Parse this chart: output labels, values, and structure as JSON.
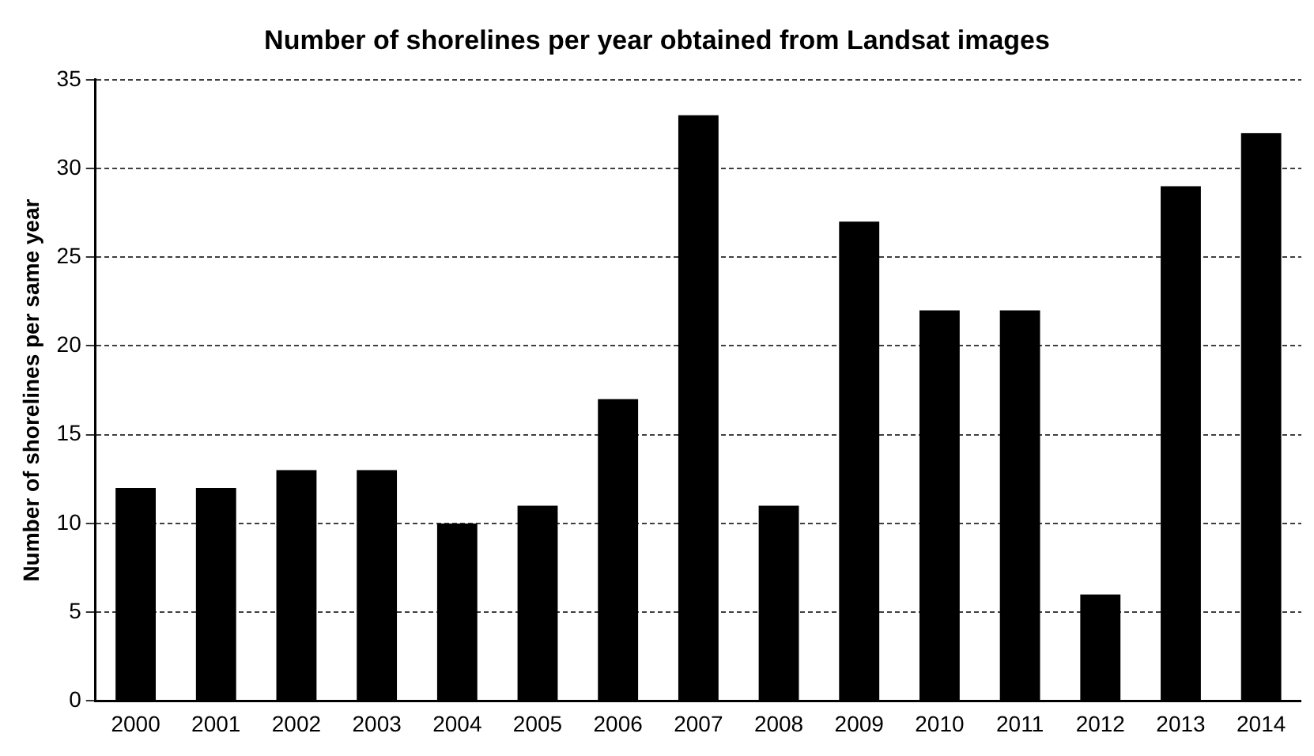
{
  "chart_data": {
    "type": "bar",
    "title": "Number of shorelines per year obtained from Landsat images",
    "ylabel": "Number of shorelines per same year",
    "categories": [
      "2000",
      "2001",
      "2002",
      "2003",
      "2004",
      "2005",
      "2006",
      "2007",
      "2008",
      "2009",
      "2010",
      "2011",
      "2012",
      "2013",
      "2014"
    ],
    "values": [
      12,
      12,
      13,
      13,
      10,
      11,
      17,
      33,
      11,
      27,
      22,
      22,
      6,
      29,
      32
    ],
    "color": "#000000",
    "ylim": [
      0,
      35
    ],
    "yticks": [
      0,
      5,
      10,
      15,
      20,
      25,
      30,
      35
    ],
    "grid": "y",
    "legend": false
  }
}
